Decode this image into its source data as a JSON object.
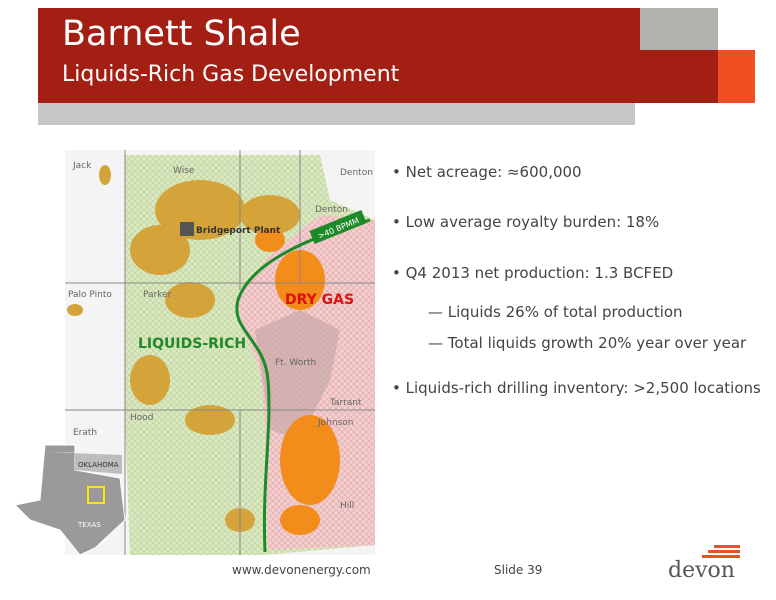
{
  "header": {
    "title": "Barnett Shale",
    "subtitle": "Liquids-Rich Gas Development"
  },
  "map": {
    "counties": [
      "Jack",
      "Wise",
      "Denton",
      "Palo Pinto",
      "Parker",
      "Tarrant",
      "Erath",
      "Hood",
      "Johnson",
      "Hill"
    ],
    "city_labels": [
      "Denton",
      "Ft. Worth"
    ],
    "plant": "Bridgeport Plant",
    "pipeline": ">40 BPMM",
    "dry_gas": "DRY GAS",
    "liquids_rich": "LIQUIDS-RICH",
    "inset": {
      "oklahoma": "OKLAHOMA",
      "texas": "TEXAS"
    }
  },
  "bullets": [
    {
      "text": "Net acreage: ≈600,000"
    },
    {
      "text": "Low average royalty burden: 18%"
    },
    {
      "text": "Q4 2013 net production: 1.3 BCFED",
      "sub": [
        "Liquids 26% of total production",
        "Total liquids growth 20% year over year"
      ]
    },
    {
      "text": "Liquids-rich drilling inventory: >2,500 locations"
    }
  ],
  "footer": {
    "url": "www.devonenergy.com",
    "slide": "Slide 39",
    "logo": "devon"
  }
}
